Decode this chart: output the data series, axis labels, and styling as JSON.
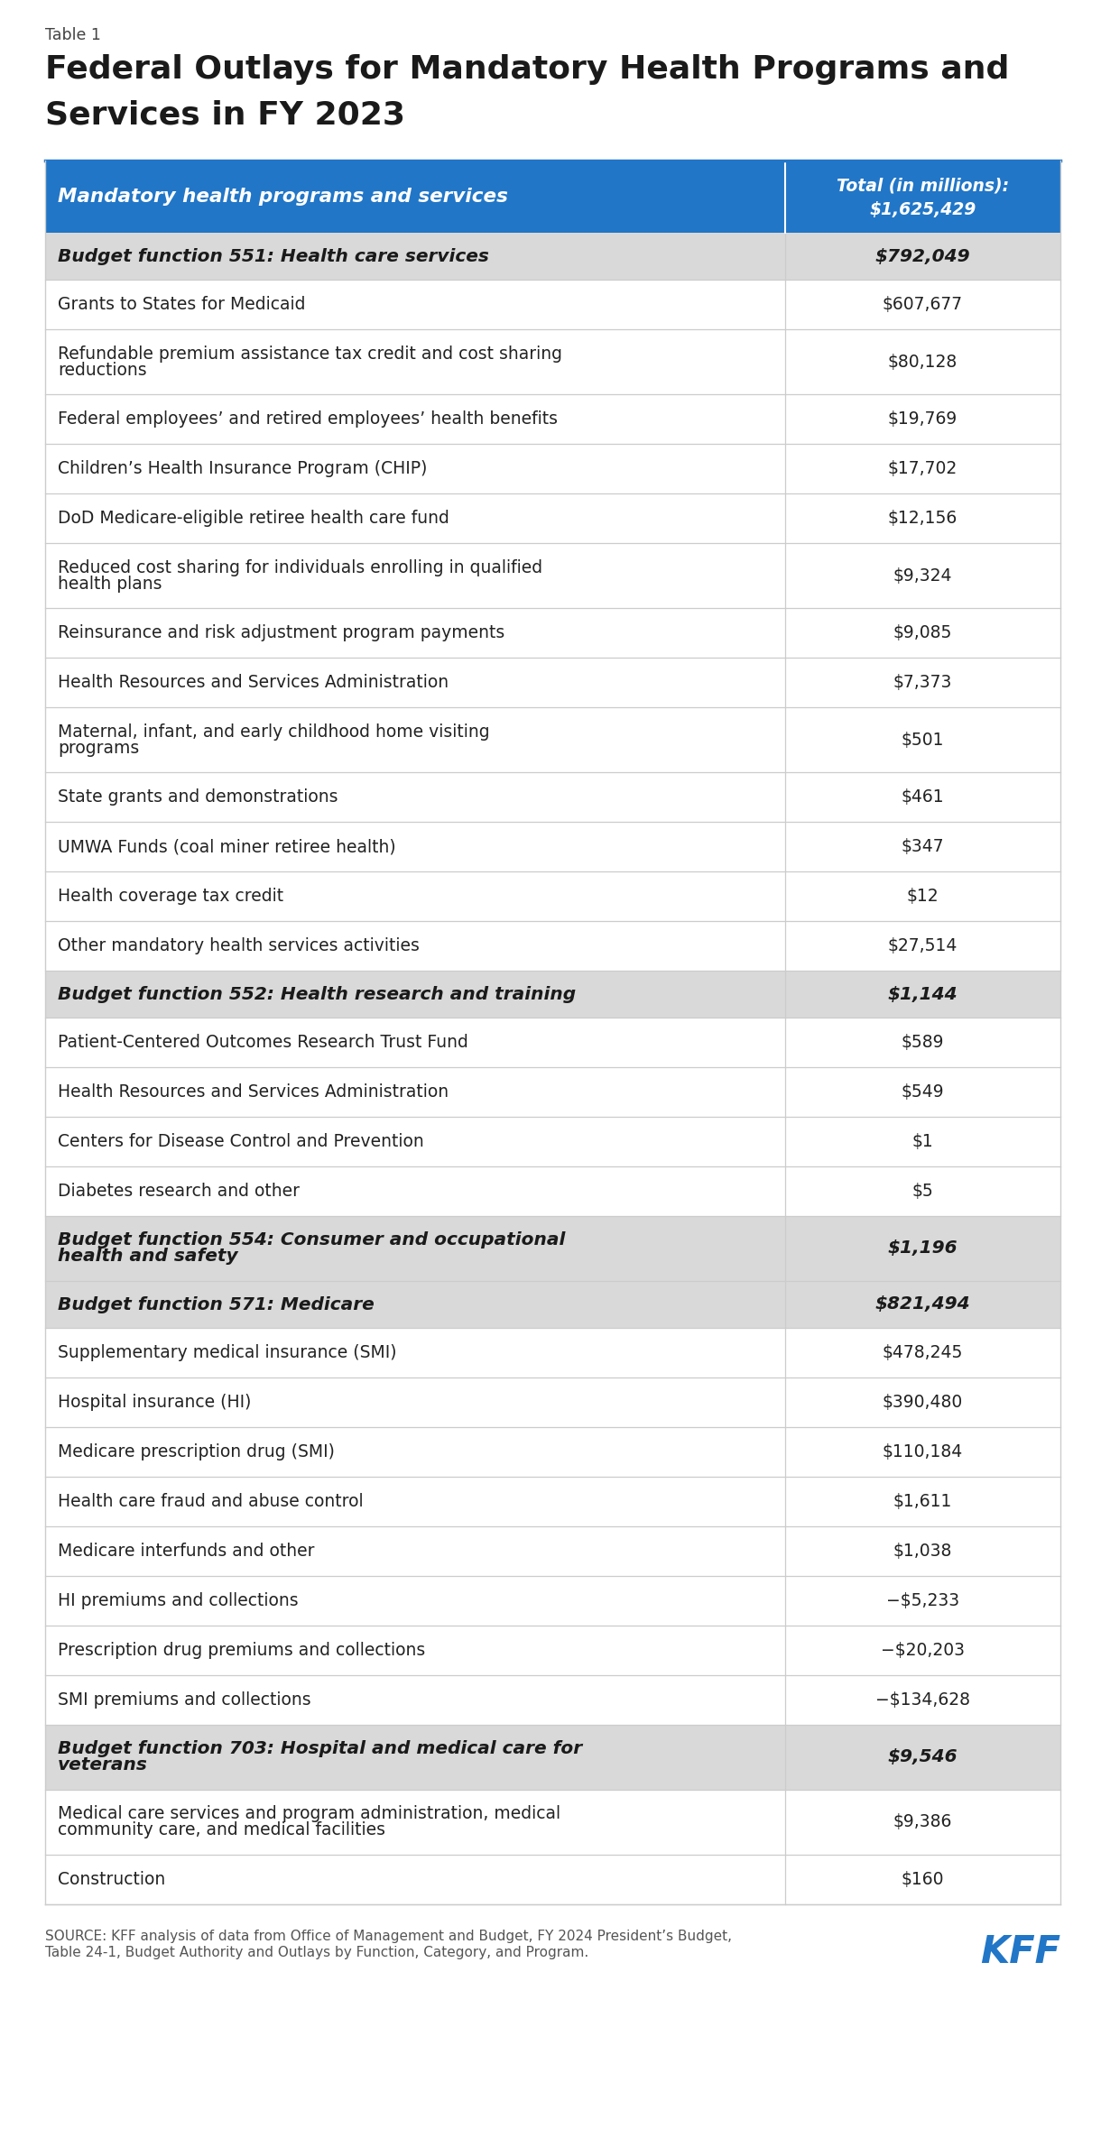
{
  "table_label": "Table 1",
  "title_line1": "Federal Outlays for Mandatory Health Programs and",
  "title_line2": "Services in FY 2023",
  "header_col1": "Mandatory health programs and services",
  "header_col2_line1": "Total (in millions):",
  "header_col2_line2": "$1,625,429",
  "header_bg": "#2176c7",
  "header_text_color": "#ffffff",
  "subheader_bg": "#d9d9d9",
  "subheader_text_color": "#1a1a1a",
  "row_bg": "#ffffff",
  "text_color": "#222222",
  "divider_color": "#cccccc",
  "source_line1": "SOURCE: KFF analysis of data from Office of Management and Budget, FY 2024 President’s Budget,",
  "source_line2": "Table 24-1, Budget Authority and Outlays by Function, Category, and Program.",
  "kff_color": "#2176c7",
  "rows": [
    {
      "label": "Budget function 551: Health care services",
      "value": "$792,049",
      "type": "subheader",
      "lines": 1
    },
    {
      "label": "Grants to States for Medicaid",
      "value": "$607,677",
      "type": "data",
      "lines": 1
    },
    {
      "label": "Refundable premium assistance tax credit and cost sharing\nreductions",
      "value": "$80,128",
      "type": "data",
      "lines": 2
    },
    {
      "label": "Federal employees’ and retired employees’ health benefits",
      "value": "$19,769",
      "type": "data",
      "lines": 1
    },
    {
      "label": "Children’s Health Insurance Program (CHIP)",
      "value": "$17,702",
      "type": "data",
      "lines": 1
    },
    {
      "label": "DoD Medicare-eligible retiree health care fund",
      "value": "$12,156",
      "type": "data",
      "lines": 1
    },
    {
      "label": "Reduced cost sharing for individuals enrolling in qualified\nhealth plans",
      "value": "$9,324",
      "type": "data",
      "lines": 2
    },
    {
      "label": "Reinsurance and risk adjustment program payments",
      "value": "$9,085",
      "type": "data",
      "lines": 1
    },
    {
      "label": "Health Resources and Services Administration",
      "value": "$7,373",
      "type": "data",
      "lines": 1
    },
    {
      "label": "Maternal, infant, and early childhood home visiting\nprograms",
      "value": "$501",
      "type": "data",
      "lines": 2
    },
    {
      "label": "State grants and demonstrations",
      "value": "$461",
      "type": "data",
      "lines": 1
    },
    {
      "label": "UMWA Funds (coal miner retiree health)",
      "value": "$347",
      "type": "data",
      "lines": 1
    },
    {
      "label": "Health coverage tax credit",
      "value": "$12",
      "type": "data",
      "lines": 1
    },
    {
      "label": "Other mandatory health services activities",
      "value": "$27,514",
      "type": "data",
      "lines": 1
    },
    {
      "label": "Budget function 552: Health research and training",
      "value": "$1,144",
      "type": "subheader",
      "lines": 1
    },
    {
      "label": "Patient-Centered Outcomes Research Trust Fund",
      "value": "$589",
      "type": "data",
      "lines": 1
    },
    {
      "label": "Health Resources and Services Administration",
      "value": "$549",
      "type": "data",
      "lines": 1
    },
    {
      "label": "Centers for Disease Control and Prevention",
      "value": "$1",
      "type": "data",
      "lines": 1
    },
    {
      "label": "Diabetes research and other",
      "value": "$5",
      "type": "data",
      "lines": 1
    },
    {
      "label": "Budget function 554: Consumer and occupational\nhealth and safety",
      "value": "$1,196",
      "type": "subheader",
      "lines": 2
    },
    {
      "label": "Budget function 571: Medicare",
      "value": "$821,494",
      "type": "subheader",
      "lines": 1
    },
    {
      "label": "Supplementary medical insurance (SMI)",
      "value": "$478,245",
      "type": "data",
      "lines": 1
    },
    {
      "label": "Hospital insurance (HI)",
      "value": "$390,480",
      "type": "data",
      "lines": 1
    },
    {
      "label": "Medicare prescription drug (SMI)",
      "value": "$110,184",
      "type": "data",
      "lines": 1
    },
    {
      "label": "Health care fraud and abuse control",
      "value": "$1,611",
      "type": "data",
      "lines": 1
    },
    {
      "label": "Medicare interfunds and other",
      "value": "$1,038",
      "type": "data",
      "lines": 1
    },
    {
      "label": "HI premiums and collections",
      "value": "−$5,233",
      "type": "data",
      "lines": 1
    },
    {
      "label": "Prescription drug premiums and collections",
      "value": "−$20,203",
      "type": "data",
      "lines": 1
    },
    {
      "label": "SMI premiums and collections",
      "value": "−$134,628",
      "type": "data",
      "lines": 1
    },
    {
      "label": "Budget function 703: Hospital and medical care for\nveterans",
      "value": "$9,546",
      "type": "subheader",
      "lines": 2
    },
    {
      "label": "Medical care services and program administration, medical\ncommunity care, and medical facilities",
      "value": "$9,386",
      "type": "data",
      "lines": 2
    },
    {
      "label": "Construction",
      "value": "$160",
      "type": "data",
      "lines": 1
    }
  ],
  "fig_width": 12.2,
  "fig_height": 23.9,
  "bg_color": "#ffffff"
}
